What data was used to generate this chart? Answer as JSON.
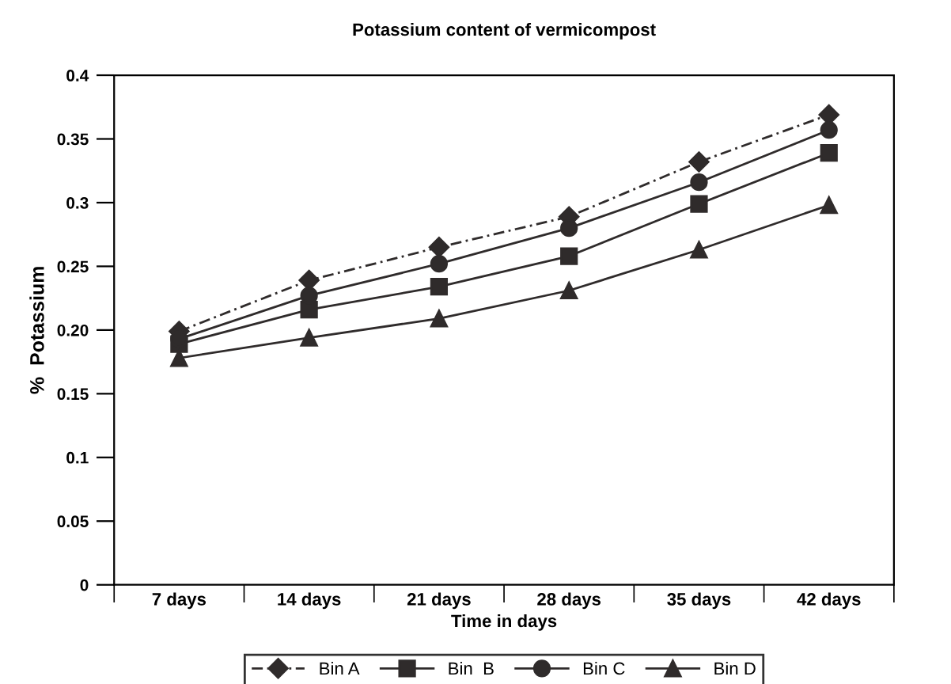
{
  "chart_data": {
    "type": "line",
    "title": "Potassium content of vermicompost",
    "xlabel": "Time in days",
    "ylabel": "%  Potassium",
    "categories": [
      "7 days",
      "14 days",
      "21 days",
      "28 days",
      "35 days",
      "42 days"
    ],
    "series": [
      {
        "name": "Bin A",
        "color": "#2f2b2b",
        "marker": "diamond",
        "line_style": "dashed",
        "values": [
          0.199,
          0.239,
          0.265,
          0.289,
          0.332,
          0.369
        ]
      },
      {
        "name": "Bin  B",
        "color": "#2f2b2b",
        "marker": "square",
        "line_style": "solid",
        "values": [
          0.189,
          0.216,
          0.234,
          0.258,
          0.299,
          0.339
        ]
      },
      {
        "name": "Bin C",
        "color": "#2f2b2b",
        "marker": "circle",
        "line_style": "solid",
        "values": [
          0.193,
          0.227,
          0.252,
          0.28,
          0.316,
          0.357
        ]
      },
      {
        "name": "Bin D",
        "color": "#2f2b2b",
        "marker": "triangle",
        "line_style": "solid",
        "values": [
          0.178,
          0.194,
          0.209,
          0.231,
          0.263,
          0.298
        ]
      }
    ],
    "ylim": [
      0,
      0.4
    ],
    "yticks": [
      0,
      0.05,
      0.1,
      0.15,
      {
        "value": 0.2,
        "label": "0.20"
      },
      0.25,
      0.3,
      0.35,
      0.4
    ],
    "grid": false,
    "legend": "bottom"
  }
}
